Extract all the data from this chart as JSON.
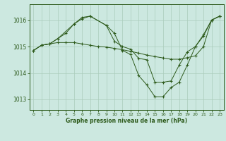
{
  "title": "Graphe pression niveau de la mer (hPa)",
  "background_color": "#cce8e0",
  "line_color": "#2d5a1b",
  "grid_color": "#aaccbb",
  "ylim": [
    1012.6,
    1016.6
  ],
  "xlim": [
    -0.5,
    23.5
  ],
  "yticks": [
    1013,
    1014,
    1015,
    1016
  ],
  "xticks": [
    0,
    1,
    2,
    3,
    4,
    5,
    6,
    7,
    8,
    9,
    10,
    11,
    12,
    13,
    14,
    15,
    16,
    17,
    18,
    19,
    20,
    21,
    22,
    23
  ],
  "series": [
    {
      "x": [
        0,
        1,
        2,
        3,
        4,
        5,
        6,
        7,
        8,
        9,
        10,
        11,
        12,
        13,
        14,
        15,
        16,
        17,
        18,
        19,
        20,
        21,
        22,
        23
      ],
      "y": [
        1014.85,
        1015.05,
        1015.1,
        1015.15,
        1015.15,
        1015.15,
        1015.1,
        1015.05,
        1015.0,
        1014.98,
        1014.93,
        1014.88,
        1014.82,
        1014.75,
        1014.68,
        1014.62,
        1014.57,
        1014.52,
        1014.52,
        1014.58,
        1014.65,
        1015.0,
        1016.0,
        1016.15
      ]
    },
    {
      "x": [
        0,
        1,
        2,
        3,
        5,
        6,
        7,
        9,
        10,
        11,
        12,
        13,
        14,
        15,
        16,
        17,
        18,
        19,
        20,
        21,
        22,
        23
      ],
      "y": [
        1014.85,
        1015.05,
        1015.1,
        1015.3,
        1015.85,
        1016.05,
        1016.15,
        1015.8,
        1015.5,
        1014.85,
        1014.7,
        1013.9,
        1013.55,
        1013.1,
        1013.1,
        1013.45,
        1013.65,
        1014.3,
        1015.0,
        1015.45,
        1016.0,
        1016.15
      ]
    },
    {
      "x": [
        0,
        1,
        2,
        3,
        4,
        5,
        6,
        7,
        9,
        10,
        11,
        12,
        13,
        14,
        15,
        16,
        17,
        18,
        19,
        20,
        21,
        22,
        23
      ],
      "y": [
        1014.85,
        1015.05,
        1015.1,
        1015.3,
        1015.5,
        1015.85,
        1016.1,
        1016.15,
        1015.8,
        1015.2,
        1015.0,
        1014.9,
        1014.55,
        1014.5,
        1013.65,
        1013.65,
        1013.7,
        1014.3,
        1014.8,
        1015.0,
        1015.4,
        1016.0,
        1016.15
      ]
    }
  ]
}
